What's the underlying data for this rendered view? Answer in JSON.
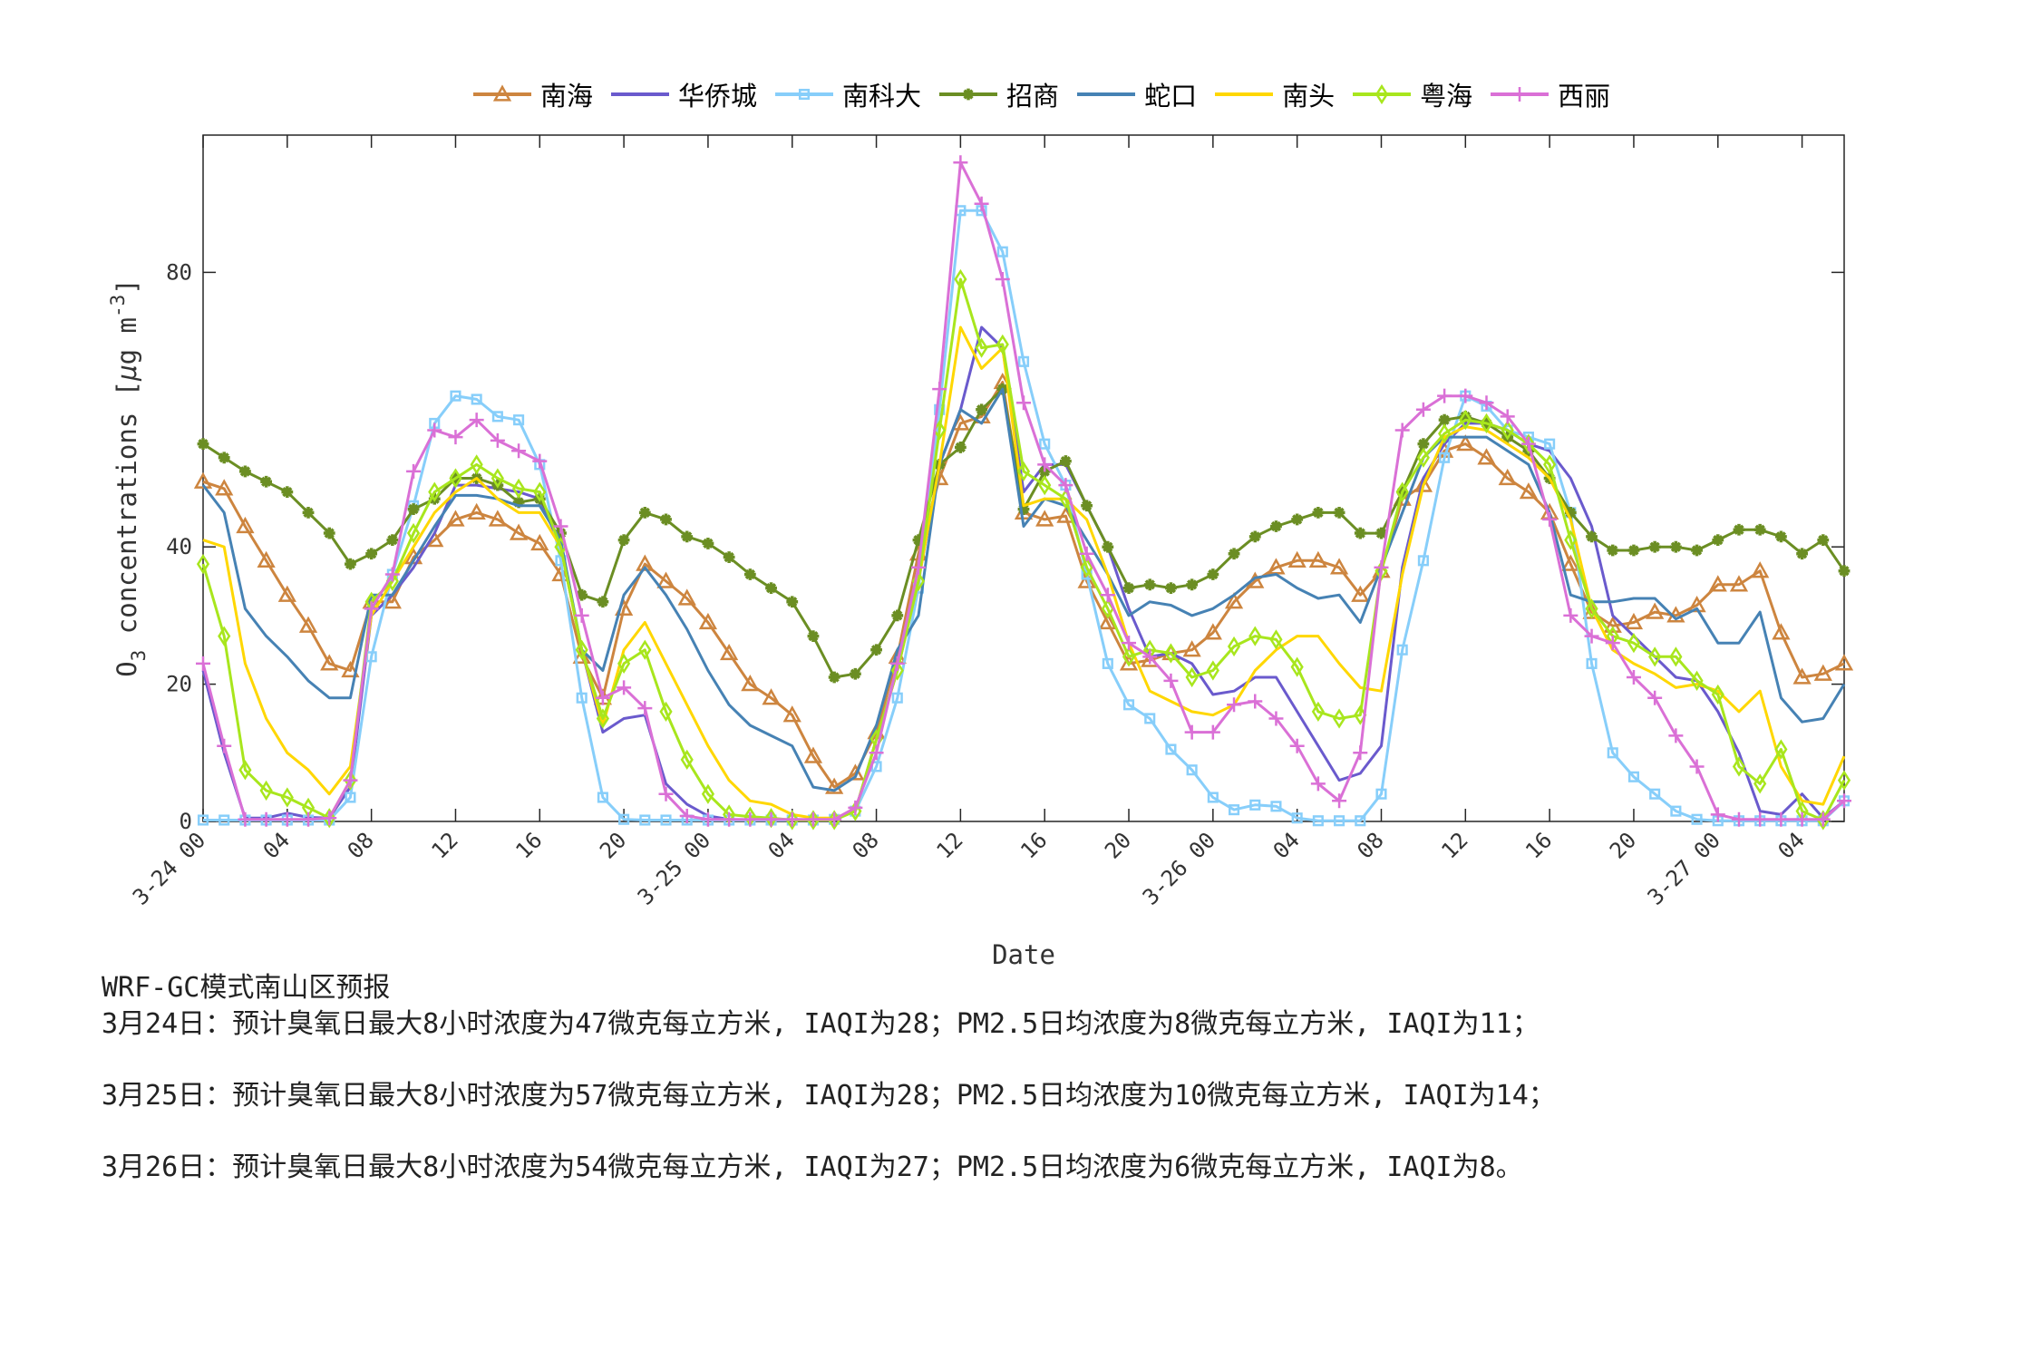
{
  "chart_data": {
    "type": "line",
    "xlabel": "Date",
    "ylabel": "O3 concentrations [μg m-3]",
    "ylim": [
      0,
      100
    ],
    "y_ticks": [
      0,
      20,
      40,
      80
    ],
    "x_start": "3-24 00",
    "x_step_hours": 1,
    "x_tick_labels": [
      "3-24 00",
      "04",
      "08",
      "12",
      "16",
      "20",
      "3-25 00",
      "04",
      "08",
      "12",
      "16",
      "20",
      "3-26 00",
      "04",
      "08",
      "12",
      "16",
      "20",
      "3-27 00",
      "04"
    ],
    "grid": false,
    "legend_position": "top",
    "series": [
      {
        "name": "南海",
        "color": "#CD853F",
        "marker": "triangle",
        "values": [
          49.5,
          48.5,
          43,
          38,
          33,
          28.5,
          23,
          22,
          32,
          32,
          38.5,
          41,
          44,
          45,
          44,
          42,
          40.5,
          36,
          24,
          18,
          31,
          37.5,
          35,
          32.5,
          29,
          24.5,
          20,
          18,
          15.5,
          9.5,
          5,
          7,
          13,
          24,
          39,
          50,
          58,
          59,
          64,
          45,
          44,
          44.5,
          35,
          29,
          23,
          23.5,
          24.5,
          25,
          27.5,
          32,
          35,
          37,
          38,
          38,
          37,
          33,
          36.5,
          47,
          49,
          54,
          55,
          53,
          50,
          48,
          45,
          37.5,
          30.5,
          28.5,
          29,
          30.5,
          30,
          31.5,
          34.5,
          34.5,
          36.5,
          27.5,
          21,
          21.5,
          23
        ]
      },
      {
        "name": "华侨城",
        "color": "#6A5ACD",
        "marker": "none",
        "values": [
          22,
          10,
          0.5,
          0.5,
          1.2,
          0.6,
          0.5,
          5,
          30,
          33,
          37,
          42,
          49,
          49,
          48.5,
          48,
          47,
          40,
          25,
          13,
          15,
          15.5,
          5.5,
          2.5,
          0.8,
          0.3,
          0.2,
          0.2,
          0.2,
          0.2,
          0.3,
          1.5,
          12,
          22,
          35,
          52,
          60,
          72,
          69,
          48,
          52,
          52,
          46,
          40,
          31,
          24,
          24.5,
          23,
          18.5,
          19,
          21,
          21,
          16,
          11,
          6,
          7,
          11,
          37,
          50,
          55,
          58,
          58,
          57,
          55,
          54,
          50,
          43,
          30,
          27,
          24,
          21,
          20.5,
          16,
          10,
          1.5,
          1,
          4,
          0.5,
          3
        ]
      },
      {
        "name": "南科大",
        "color": "#87CEFA",
        "marker": "square",
        "values": [
          0.2,
          0.2,
          0.2,
          0.2,
          0.2,
          0.2,
          0.2,
          3.5,
          24,
          36,
          46,
          58,
          62,
          61.5,
          59,
          58.5,
          52,
          38,
          18,
          3.5,
          0.3,
          0.2,
          0.2,
          0.2,
          0.2,
          0.2,
          0.2,
          0.2,
          0.2,
          0.2,
          0.3,
          1.5,
          8,
          18,
          34,
          60,
          89,
          89,
          83,
          67,
          55,
          49,
          36,
          23,
          17,
          15,
          10.5,
          7.5,
          3.5,
          1.7,
          2.4,
          2.2,
          0.5,
          0.1,
          0.1,
          0.1,
          4,
          25,
          38,
          53,
          62,
          60.5,
          57,
          56,
          55,
          45,
          23,
          10,
          6.5,
          4,
          1.5,
          0.3,
          0.1,
          0.1,
          0.1,
          0.1,
          0.1,
          0.1,
          3
        ]
      },
      {
        "name": "招商",
        "color": "#6B8E23",
        "marker": "star",
        "values": [
          55,
          53,
          51,
          49.5,
          48,
          45,
          42,
          37.5,
          39,
          41,
          45.5,
          47,
          50,
          50,
          49,
          46.5,
          47,
          42,
          33,
          32,
          41,
          45,
          44,
          41.5,
          40.5,
          38.5,
          36,
          34,
          32,
          27,
          21,
          21.5,
          25,
          30,
          41,
          52,
          54.5,
          60,
          63,
          45.5,
          51,
          52.5,
          46,
          40,
          34,
          34.5,
          34,
          34.5,
          36,
          39,
          41.5,
          43,
          44,
          45,
          45,
          42,
          42,
          48,
          55,
          58.5,
          59,
          58,
          56,
          54,
          50,
          45,
          41.5,
          39.5,
          39.5,
          40,
          40,
          39.5,
          41,
          42.5,
          42.5,
          41.5,
          39,
          41,
          36.5
        ]
      },
      {
        "name": "蛇口",
        "color": "#4682B4",
        "marker": "none",
        "values": [
          49,
          45,
          31,
          27,
          24,
          20.5,
          18,
          18,
          33,
          33,
          38,
          43,
          47.5,
          47.5,
          47,
          46,
          46,
          41,
          25,
          22,
          33,
          37,
          33,
          28,
          22,
          17,
          14,
          12.5,
          11,
          5,
          4.5,
          6.5,
          14,
          25,
          30,
          52,
          60,
          58,
          63,
          43,
          47,
          46,
          41,
          36,
          30,
          32,
          31.5,
          30,
          31,
          33,
          35.5,
          36,
          34,
          32.5,
          33,
          29,
          37,
          45,
          53,
          56,
          56,
          56,
          54,
          52,
          45,
          33,
          32,
          32,
          32.5,
          32.5,
          29.5,
          31,
          26,
          26,
          30.5,
          18,
          14.5,
          15,
          20
        ]
      },
      {
        "name": "南头",
        "color": "#FFD700",
        "marker": "none",
        "values": [
          41,
          40,
          23,
          15,
          10,
          7.5,
          4,
          8,
          30,
          35,
          40,
          45,
          48,
          50,
          47,
          45,
          45,
          40,
          25,
          14,
          25,
          29,
          23,
          17,
          11,
          6,
          3,
          2.5,
          1,
          0.5,
          0.5,
          1.5,
          12,
          22,
          35,
          52,
          72,
          66,
          69,
          46,
          47,
          47,
          44,
          36,
          26,
          19,
          17.5,
          16,
          15.5,
          17,
          22,
          25,
          27,
          27,
          23,
          19.5,
          19,
          36,
          49,
          56,
          57.5,
          57,
          55,
          53,
          50,
          44,
          31,
          25,
          23,
          21.5,
          19.5,
          20,
          19,
          16,
          19,
          8,
          3,
          2.5,
          9.5
        ]
      },
      {
        "name": "粤海",
        "color": "#A8E61D",
        "marker": "diamond",
        "values": [
          37.5,
          27,
          7.5,
          4.5,
          3.5,
          2,
          0.5,
          6,
          32,
          35,
          42,
          48,
          50,
          52,
          50,
          48.5,
          48,
          40,
          25,
          15,
          23,
          25,
          16,
          9,
          4,
          1,
          0.7,
          0.5,
          0.2,
          0.2,
          0.2,
          1.5,
          12,
          22,
          35,
          57,
          79,
          69,
          69.5,
          51,
          49,
          47,
          37,
          31,
          24,
          25,
          24.5,
          21,
          22,
          25.5,
          27,
          26.5,
          22.5,
          16,
          15,
          15.5,
          36.5,
          48,
          53,
          56.5,
          58.5,
          58,
          57,
          55,
          52,
          41,
          31,
          27,
          26,
          24,
          24,
          20.5,
          18.5,
          8,
          5.5,
          10.5,
          1.5,
          0.2,
          6
        ]
      },
      {
        "name": "西丽",
        "color": "#DA70D6",
        "marker": "plus",
        "values": [
          23,
          11,
          0.3,
          0.3,
          0.3,
          0.3,
          0.5,
          6,
          31,
          36,
          51,
          57,
          56,
          58.5,
          55.5,
          54,
          52.5,
          43,
          30,
          18,
          19.5,
          16.5,
          4,
          0.8,
          0.3,
          0.3,
          0.3,
          0.3,
          0.3,
          0.3,
          0.3,
          2,
          10,
          23,
          37,
          63,
          96,
          90,
          79,
          61,
          52,
          49,
          39,
          33,
          26,
          24,
          20.5,
          13,
          13,
          17,
          17.5,
          15,
          11,
          5.5,
          3,
          10,
          37,
          57,
          60,
          62,
          62,
          61,
          59,
          55,
          44,
          30,
          27,
          26,
          21,
          18,
          12.5,
          8,
          1,
          0.3,
          0.3,
          0.3,
          0.3,
          0.3,
          3
        ]
      }
    ]
  },
  "notes": {
    "title": "WRF-GC模式南山区预报",
    "lines": [
      "3月24日：预计臭氧日最大8小时浓度为47微克每立方米, IAQI为28；PM2.5日均浓度为8微克每立方米, IAQI为11；",
      "3月25日：预计臭氧日最大8小时浓度为57微克每立方米, IAQI为28；PM2.5日均浓度为10微克每立方米, IAQI为14；",
      "3月26日：预计臭氧日最大8小时浓度为54微克每立方米, IAQI为27；PM2.5日均浓度为6微克每立方米, IAQI为8。"
    ]
  }
}
